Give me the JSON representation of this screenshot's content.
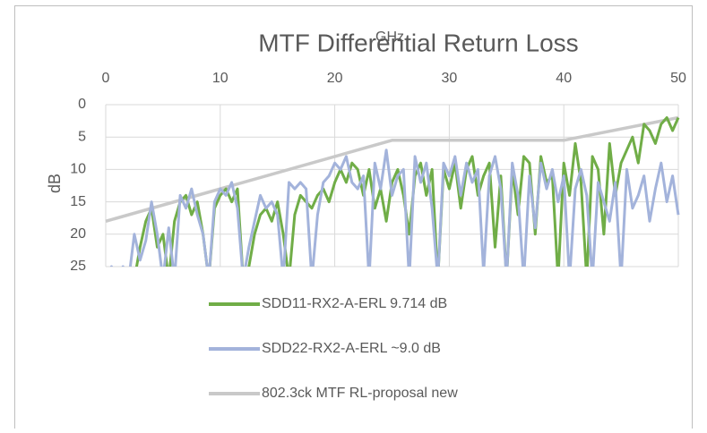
{
  "chart_data": {
    "type": "line",
    "title": "MTF Differential Return Loss",
    "x_label": "GHz",
    "y_label": "dB",
    "xlim": [
      0,
      50
    ],
    "xticks": [
      0,
      10,
      20,
      30,
      40,
      50
    ],
    "ylim": [
      0,
      25
    ],
    "yticks": [
      0,
      5,
      10,
      15,
      20,
      25
    ],
    "y_inverted": true,
    "x_axis_position": "top",
    "grid": true,
    "legend": "bottom",
    "series": [
      {
        "name": "SDD11-RX2-A-ERL 9.714 dB",
        "color": "#70ad47",
        "x": [
          0,
          0.5,
          1,
          1.5,
          2,
          2.5,
          3,
          3.5,
          4,
          4.5,
          5,
          5.5,
          6,
          6.5,
          7,
          7.5,
          8,
          8.5,
          9,
          9.5,
          10,
          10.5,
          11,
          11.5,
          12,
          12.5,
          13,
          13.5,
          14,
          14.5,
          15,
          15.5,
          16,
          16.5,
          17,
          17.5,
          18,
          18.5,
          19,
          19.5,
          20,
          20.5,
          21,
          21.5,
          22,
          22.5,
          23,
          23.5,
          24,
          24.5,
          25,
          25.5,
          26,
          26.5,
          27,
          27.5,
          28,
          28.5,
          29,
          29.5,
          30,
          30.5,
          31,
          31.5,
          32,
          32.5,
          33,
          33.5,
          34,
          34.5,
          35,
          35.5,
          36,
          36.5,
          37,
          37.5,
          38,
          38.5,
          39,
          39.5,
          40,
          40.5,
          41,
          41.5,
          42,
          42.5,
          43,
          43.5,
          44,
          44.5,
          45,
          45.5,
          46,
          46.5,
          47,
          47.5,
          48,
          48.5,
          49,
          49.5,
          50
        ],
        "values": [
          27,
          27,
          27,
          27,
          27,
          27,
          22,
          18,
          16,
          22,
          20,
          27,
          18,
          15,
          14,
          17,
          15,
          20,
          27,
          16,
          14,
          13,
          15,
          13,
          27,
          25,
          20,
          17,
          16,
          18,
          15,
          20,
          27,
          17,
          14,
          15,
          16,
          14,
          13,
          15,
          12,
          10,
          12,
          9,
          10,
          14,
          10,
          16,
          13,
          18,
          12,
          10,
          14,
          20,
          11,
          9,
          14,
          10,
          27,
          10,
          13,
          9,
          16,
          10,
          8,
          14,
          11,
          9,
          22,
          11,
          27,
          10,
          17,
          8,
          9,
          20,
          8,
          12,
          11,
          27,
          9,
          14,
          6,
          12,
          27,
          8,
          10,
          20,
          6,
          14,
          9,
          7,
          5,
          9,
          3,
          4,
          6,
          3,
          2,
          4,
          2
        ]
      },
      {
        "name": "SDD22-RX2-A-ERL ~9.0 dB",
        "color": "#a3b3db",
        "x": [
          0,
          0.5,
          1,
          1.5,
          2,
          2.5,
          3,
          3.5,
          4,
          4.5,
          5,
          5.5,
          6,
          6.5,
          7,
          7.5,
          8,
          8.5,
          9,
          9.5,
          10,
          10.5,
          11,
          11.5,
          12,
          12.5,
          13,
          13.5,
          14,
          14.5,
          15,
          15.5,
          16,
          16.5,
          17,
          17.5,
          18,
          18.5,
          19,
          19.5,
          20,
          20.5,
          21,
          21.5,
          22,
          22.5,
          23,
          23.5,
          24,
          24.5,
          25,
          25.5,
          26,
          26.5,
          27,
          27.5,
          28,
          28.5,
          29,
          29.5,
          30,
          30.5,
          31,
          31.5,
          32,
          32.5,
          33,
          33.5,
          34,
          34.5,
          35,
          35.5,
          36,
          36.5,
          37,
          37.5,
          38,
          38.5,
          39,
          39.5,
          40,
          40.5,
          41,
          41.5,
          42,
          42.5,
          43,
          43.5,
          44,
          44.5,
          45,
          45.5,
          46,
          46.5,
          47,
          47.5,
          48,
          48.5,
          49,
          49.5,
          50
        ],
        "values": [
          27,
          25,
          27,
          25,
          27,
          20,
          24,
          21,
          15,
          20,
          27,
          19,
          27,
          14,
          16,
          13,
          17,
          20,
          27,
          15,
          13,
          14,
          12,
          16,
          27,
          22,
          18,
          14,
          16,
          15,
          17,
          27,
          12,
          13,
          12,
          13,
          27,
          17,
          12,
          11,
          9,
          10,
          8,
          12,
          13,
          11,
          27,
          9,
          13,
          7,
          14,
          11,
          10,
          27,
          8,
          12,
          9,
          16,
          27,
          9,
          11,
          8,
          14,
          9,
          12,
          10,
          26,
          11,
          8,
          13,
          27,
          9,
          14,
          27,
          11,
          19,
          9,
          13,
          10,
          15,
          11,
          27,
          13,
          10,
          14,
          27,
          12,
          15,
          18,
          12,
          27,
          10,
          16,
          14,
          11,
          18,
          13,
          9,
          15,
          11,
          17
        ]
      },
      {
        "name": "802.3ck MTF RL-proposal new",
        "color": "#c9c9c9",
        "x": [
          0,
          25,
          40,
          50
        ],
        "values": [
          18,
          5.5,
          5.5,
          2
        ]
      }
    ]
  }
}
